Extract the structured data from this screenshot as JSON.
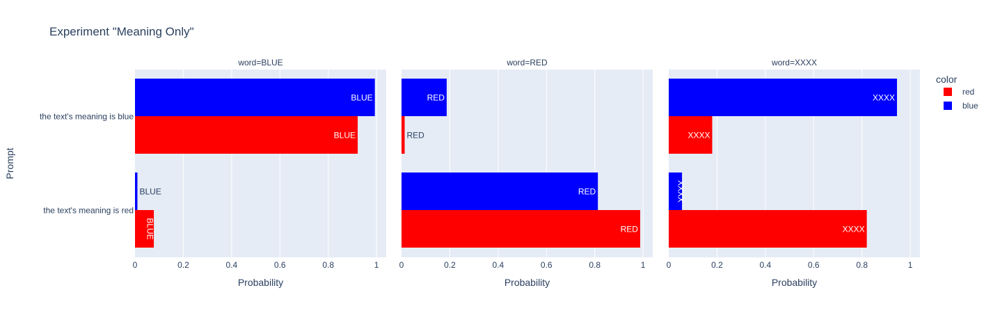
{
  "colors": {
    "plot_bg": "#e5ecf6",
    "grid": "#ffffff",
    "text": "#2a3f5f",
    "red": "#ff0000",
    "blue": "#0000ff"
  },
  "chart_data": {
    "type": "bar",
    "orientation": "horizontal",
    "barmode": "group",
    "title": "Experiment \"Meaning Only\"",
    "xlabel": "Probability",
    "ylabel": "Prompt",
    "xlim": [
      0,
      1.04
    ],
    "xticks": [
      "0",
      "0.2",
      "0.4",
      "0.6",
      "0.8",
      "1"
    ],
    "xtick_values": [
      0,
      0.2,
      0.4,
      0.6,
      0.8,
      1
    ],
    "categories": [
      "the text's meaning is blue",
      "the text's meaning is red"
    ],
    "legend": {
      "title": "color",
      "position": "right",
      "entries": [
        {
          "name": "red",
          "color": "#ff0000"
        },
        {
          "name": "blue",
          "color": "#0000ff"
        }
      ]
    },
    "panels": [
      {
        "title": "word=BLUE",
        "series": [
          {
            "name": "blue",
            "values": [
              0.993,
              0.01
            ],
            "labels": [
              "BLUE",
              "BLUE"
            ]
          },
          {
            "name": "red",
            "values": [
              0.922,
              0.078
            ],
            "labels": [
              "BLUE",
              "BLUE"
            ]
          }
        ]
      },
      {
        "title": "word=RED",
        "series": [
          {
            "name": "blue",
            "values": [
              0.187,
              0.813
            ],
            "labels": [
              "RED",
              "RED"
            ]
          },
          {
            "name": "red",
            "values": [
              0.013,
              0.988
            ],
            "labels": [
              "RED",
              "RED"
            ]
          }
        ]
      },
      {
        "title": "word=XXXX",
        "series": [
          {
            "name": "blue",
            "values": [
              0.945,
              0.055
            ],
            "labels": [
              "XXXX",
              "XXXX"
            ]
          },
          {
            "name": "red",
            "values": [
              0.18,
              0.82
            ],
            "labels": [
              "XXXX",
              "XXXX"
            ]
          }
        ]
      }
    ]
  }
}
